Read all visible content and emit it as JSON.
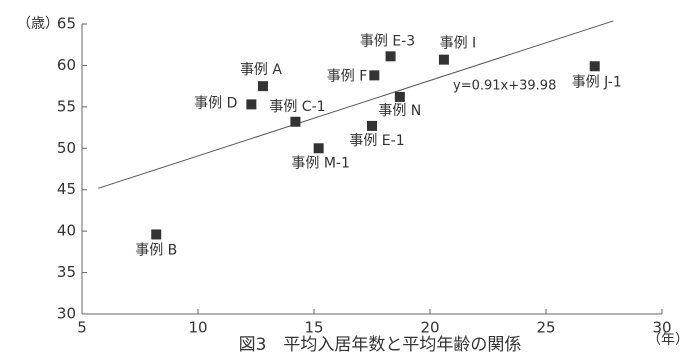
{
  "chart_data": {
    "type": "scatter",
    "title": "図3　平均入居年数と平均年齢の関係",
    "y_unit": "（歳）",
    "x_unit": "（年）",
    "xlim": [
      5,
      30
    ],
    "xticks": [
      5,
      10,
      15,
      20,
      25,
      30
    ],
    "ylim": [
      30,
      65
    ],
    "yticks": [
      30,
      35,
      40,
      45,
      50,
      55,
      60,
      65
    ],
    "color": "#333333",
    "series": [
      {
        "labels": [
          "事例 A",
          "事例 D",
          "事例 C-1",
          "事例 M-1",
          "事例 E-1",
          "事例 F",
          "事例 E-3",
          "事例 N",
          "事例 I",
          "事例 J-1",
          "事例 B"
        ],
        "x": [
          12.8,
          12.3,
          14.2,
          15.2,
          17.5,
          17.6,
          18.3,
          18.7,
          20.6,
          27.1,
          8.2
        ],
        "values": [
          57.5,
          55.3,
          53.2,
          50.0,
          52.7,
          58.8,
          61.1,
          56.2,
          60.7,
          59.9,
          39.6
        ]
      }
    ],
    "regression": {
      "label": "y=0.91x+39.98",
      "slope": 0.91,
      "intercept": 39.98,
      "x_range": [
        5.7,
        27.9
      ]
    }
  }
}
